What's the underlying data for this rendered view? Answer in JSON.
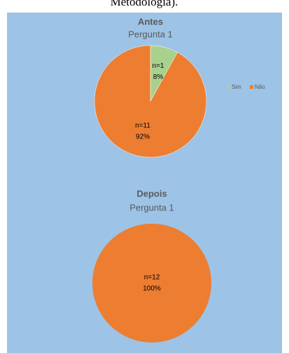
{
  "caption": "Metodologia).",
  "chart_data": [
    {
      "type": "pie",
      "title": "Antes",
      "subtitle": "Pergunta 1",
      "categories": [
        "Sim",
        "Não"
      ],
      "values": [
        8,
        92
      ],
      "value_labels": [
        "8%",
        "92%"
      ],
      "counts": [
        1,
        11
      ],
      "count_labels": [
        "n=1",
        "n=11"
      ],
      "colors": [
        "#a9d18e",
        "#ed7d31"
      ],
      "legend": "right"
    },
    {
      "type": "pie",
      "title": "Depois",
      "subtitle": "Pergunta 1",
      "values": [
        100
      ],
      "value_labels": [
        "100%"
      ],
      "counts": [
        12
      ],
      "count_labels": [
        "n=12"
      ],
      "colors": [
        "#ed7d31"
      ]
    }
  ]
}
